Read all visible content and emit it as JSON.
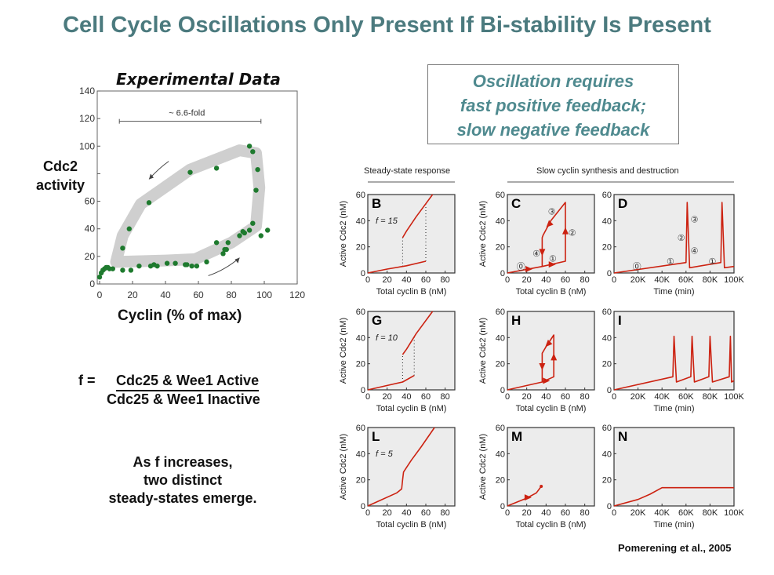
{
  "slide": {
    "title": "Cell Cycle Oscillations Only Present If Bi-stability Is Present",
    "callout": [
      "Oscillation requires",
      "fast positive feedback;",
      "slow negative feedback"
    ],
    "y_label_lines": [
      "Cdc2",
      "activity"
    ],
    "x_label": "Cyclin (% of max)",
    "formula": {
      "lhs": "f =",
      "numerator": "Cdc25 & Wee1 Active",
      "denominator": "Cdc25 & Wee1 Inactive"
    },
    "explanation": [
      "As f increases,",
      "two distinct",
      "steady-states emerge."
    ],
    "citation": "Pomerening et al., 2005",
    "colors": {
      "title": "#4b7a7e",
      "callout": "#4f8a8f",
      "curve": "#cc2211",
      "points": "#1e7a2e",
      "band": "#cfcfcf",
      "panel_bg": "#ececec"
    }
  },
  "chart_data": [
    {
      "id": "experimental",
      "type": "scatter",
      "title": "Experimental Data",
      "xlabel": "Cyclin (% of max)",
      "ylabel": "Cdc2 activity",
      "xlim": [
        0,
        120
      ],
      "ylim": [
        0,
        140
      ],
      "xticks": [
        0,
        20,
        40,
        60,
        80,
        100,
        120
      ],
      "yticks": [
        0,
        20,
        40,
        60,
        100,
        120,
        140
      ],
      "annotation": "~ 6.6-fold",
      "annotation_range": [
        12,
        98
      ],
      "points": [
        [
          0,
          5
        ],
        [
          1,
          8
        ],
        [
          2,
          10
        ],
        [
          3,
          11
        ],
        [
          4,
          12
        ],
        [
          5,
          12
        ],
        [
          6,
          11
        ],
        [
          8,
          11
        ],
        [
          14,
          10
        ],
        [
          19,
          10
        ],
        [
          24,
          13
        ],
        [
          31,
          13
        ],
        [
          33,
          14
        ],
        [
          35,
          13
        ],
        [
          41,
          15
        ],
        [
          46,
          15
        ],
        [
          52,
          14
        ],
        [
          53,
          14
        ],
        [
          56,
          13
        ],
        [
          59,
          13
        ],
        [
          65,
          16
        ],
        [
          71,
          30
        ],
        [
          75,
          22
        ],
        [
          76,
          25
        ],
        [
          77,
          25
        ],
        [
          78,
          30
        ],
        [
          85,
          35
        ],
        [
          87,
          38
        ],
        [
          88,
          37
        ],
        [
          91,
          39
        ],
        [
          93,
          44
        ],
        [
          98,
          35
        ],
        [
          102,
          39
        ],
        [
          14,
          26
        ],
        [
          18,
          40
        ],
        [
          30,
          59
        ],
        [
          55,
          81
        ],
        [
          71,
          84
        ],
        [
          91,
          100
        ],
        [
          93,
          96
        ],
        [
          96,
          83
        ],
        [
          95,
          68
        ]
      ],
      "band": [
        [
          10,
          16
        ],
        [
          40,
          17
        ],
        [
          58,
          18
        ],
        [
          80,
          30
        ],
        [
          95,
          42
        ],
        [
          97,
          70
        ],
        [
          95,
          95
        ],
        [
          85,
          97
        ],
        [
          55,
          83
        ],
        [
          25,
          58
        ],
        [
          14,
          35
        ],
        [
          10,
          16
        ]
      ]
    },
    {
      "id": "B",
      "type": "line",
      "panel": "B",
      "f_label": "f = 15",
      "xlabel": "Total cyclin B (nM)",
      "ylabel": "Active Cdc2 (nM)",
      "xlim": [
        0,
        90
      ],
      "ylim": [
        0,
        60
      ],
      "xticks": [
        0,
        20,
        40,
        60,
        80
      ],
      "yticks": [
        0,
        20,
        40,
        60
      ],
      "curves": [
        [
          [
            0,
            0
          ],
          [
            20,
            3
          ],
          [
            40,
            5.5
          ],
          [
            60,
            9
          ]
        ],
        [
          [
            36,
            27
          ],
          [
            40,
            32
          ],
          [
            50,
            43
          ],
          [
            60,
            53
          ],
          [
            67,
            60
          ]
        ]
      ],
      "dotted": [
        [
          36,
          5
        ],
        [
          36,
          27
        ],
        [
          60,
          9
        ],
        [
          60,
          53
        ]
      ]
    },
    {
      "id": "C",
      "type": "line",
      "panel": "C",
      "xlabel": "Total cyclin B (nM)",
      "ylabel": "Active Cdc2 (nM)",
      "xlim": [
        0,
        90
      ],
      "ylim": [
        0,
        60
      ],
      "xticks": [
        0,
        20,
        40,
        60,
        80
      ],
      "yticks": [
        0,
        20,
        40,
        60
      ],
      "curves": [
        [
          [
            0,
            0
          ],
          [
            36,
            5
          ],
          [
            60,
            9
          ],
          [
            60,
            54
          ],
          [
            45,
            40
          ],
          [
            37,
            29
          ],
          [
            36,
            27
          ],
          [
            36,
            5
          ]
        ]
      ],
      "arrows": [
        [
          22,
          3,
          "right"
        ],
        [
          46,
          6.5,
          "right"
        ],
        [
          60,
          32,
          "up"
        ],
        [
          43,
          37,
          "down-left"
        ],
        [
          36,
          16,
          "down"
        ]
      ],
      "labels": [
        [
          "⓪",
          14,
          5
        ],
        [
          "①",
          47,
          11
        ],
        [
          "②",
          67,
          31
        ],
        [
          "③",
          46,
          47
        ],
        [
          "④",
          30,
          15
        ]
      ]
    },
    {
      "id": "D",
      "type": "line",
      "panel": "D",
      "xlabel": "Time (min)",
      "xlim": [
        0,
        100000
      ],
      "ylim": [
        0,
        60
      ],
      "xticks": [
        0,
        20000,
        40000,
        60000,
        80000,
        100000
      ],
      "xticklabels": [
        "0",
        "20K",
        "40K",
        "60K",
        "80K",
        "100K"
      ],
      "yticks": [
        0,
        20,
        40,
        60
      ],
      "curves": [
        [
          [
            0,
            0
          ],
          [
            60000,
            8
          ],
          [
            61000,
            54
          ],
          [
            63000,
            4
          ],
          [
            89000,
            8
          ],
          [
            90000,
            54
          ],
          [
            92000,
            4
          ],
          [
            100000,
            5
          ]
        ]
      ],
      "labels": [
        [
          "⓪",
          19000,
          5
        ],
        [
          "①",
          47000,
          9
        ],
        [
          "②",
          56000,
          27
        ],
        [
          "③",
          67000,
          41
        ],
        [
          "④",
          67000,
          17
        ],
        [
          "①",
          82000,
          9
        ]
      ]
    },
    {
      "id": "G",
      "type": "line",
      "panel": "G",
      "f_label": "f = 10",
      "xlabel": "Total cyclin B (nM)",
      "ylabel": "Active Cdc2 (nM)",
      "xlim": [
        0,
        90
      ],
      "ylim": [
        0,
        60
      ],
      "xticks": [
        0,
        20,
        40,
        60,
        80
      ],
      "yticks": [
        0,
        20,
        40,
        60
      ],
      "curves": [
        [
          [
            0,
            0
          ],
          [
            36,
            6
          ],
          [
            48,
            11
          ]
        ],
        [
          [
            36,
            27
          ],
          [
            40,
            31
          ],
          [
            50,
            43
          ],
          [
            67,
            60
          ]
        ]
      ],
      "dotted": [
        [
          36,
          6
        ],
        [
          36,
          27
        ],
        [
          48,
          11
        ],
        [
          48,
          41
        ]
      ]
    },
    {
      "id": "H",
      "type": "line",
      "panel": "H",
      "xlabel": "Total cyclin B (nM)",
      "ylabel": "Active Cdc2 (nM)",
      "xlim": [
        0,
        90
      ],
      "ylim": [
        0,
        60
      ],
      "xticks": [
        0,
        20,
        40,
        60,
        80
      ],
      "yticks": [
        0,
        20,
        40,
        60
      ],
      "curves": [
        [
          [
            0,
            0
          ],
          [
            36,
            6
          ],
          [
            48,
            10
          ],
          [
            48,
            42
          ],
          [
            40,
            33
          ],
          [
            36,
            28
          ],
          [
            36,
            6
          ]
        ]
      ],
      "arrows": [
        [
          40,
          7,
          "right"
        ],
        [
          48,
          25,
          "up"
        ],
        [
          42,
          35,
          "down-left"
        ],
        [
          36,
          18,
          "down"
        ]
      ]
    },
    {
      "id": "I",
      "type": "line",
      "panel": "I",
      "xlabel": "Time (min)",
      "xlim": [
        0,
        100000
      ],
      "ylim": [
        0,
        60
      ],
      "xticks": [
        0,
        20000,
        40000,
        60000,
        80000,
        100000
      ],
      "xticklabels": [
        "0",
        "20K",
        "40K",
        "60K",
        "80K",
        "100K"
      ],
      "yticks": [
        0,
        20,
        40,
        60
      ],
      "curves": [
        [
          [
            0,
            0
          ],
          [
            49000,
            10
          ],
          [
            50000,
            41
          ],
          [
            52000,
            6
          ],
          [
            64000,
            10
          ],
          [
            65000,
            41
          ],
          [
            67000,
            6
          ],
          [
            79000,
            10
          ],
          [
            80000,
            41
          ],
          [
            82000,
            6
          ],
          [
            96000,
            10
          ],
          [
            97000,
            41
          ],
          [
            98000,
            6
          ],
          [
            100000,
            7
          ]
        ]
      ]
    },
    {
      "id": "L",
      "type": "line",
      "panel": "L",
      "f_label": "f = 5",
      "xlabel": "Total cyclin B (nM)",
      "ylabel": "Active Cdc2 (nM)",
      "xlim": [
        0,
        90
      ],
      "ylim": [
        0,
        60
      ],
      "xticks": [
        0,
        20,
        40,
        60,
        80
      ],
      "yticks": [
        0,
        20,
        40,
        60
      ],
      "curves": [
        [
          [
            0,
            0
          ],
          [
            30,
            10
          ],
          [
            35,
            13
          ],
          [
            36,
            20
          ],
          [
            37,
            26
          ],
          [
            45,
            35
          ],
          [
            55,
            45
          ],
          [
            69,
            60
          ]
        ]
      ]
    },
    {
      "id": "M",
      "type": "line",
      "panel": "M",
      "xlabel": "Total cyclin B (nM)",
      "ylabel": "Active Cdc2 (nM)",
      "xlim": [
        0,
        90
      ],
      "ylim": [
        0,
        60
      ],
      "xticks": [
        0,
        20,
        40,
        60,
        80
      ],
      "yticks": [
        0,
        20,
        40,
        60
      ],
      "curves": [
        [
          [
            0,
            0
          ],
          [
            20,
            6
          ],
          [
            30,
            10
          ],
          [
            35,
            15
          ]
        ]
      ],
      "arrows": [
        [
          21,
          6.5,
          "right"
        ]
      ]
    },
    {
      "id": "N",
      "type": "line",
      "panel": "N",
      "xlabel": "Time (min)",
      "xlim": [
        0,
        100000
      ],
      "ylim": [
        0,
        60
      ],
      "xticks": [
        0,
        20000,
        40000,
        60000,
        80000,
        100000
      ],
      "xticklabels": [
        "0",
        "20K",
        "40K",
        "60K",
        "80K",
        "100K"
      ],
      "yticks": [
        0,
        20,
        40,
        60
      ],
      "curves": [
        [
          [
            0,
            0
          ],
          [
            20000,
            5
          ],
          [
            30000,
            9
          ],
          [
            40000,
            14
          ],
          [
            100000,
            14
          ]
        ]
      ]
    }
  ],
  "panel_headers": {
    "left": "Steady-state response",
    "right": "Slow cyclin synthesis and destruction"
  }
}
